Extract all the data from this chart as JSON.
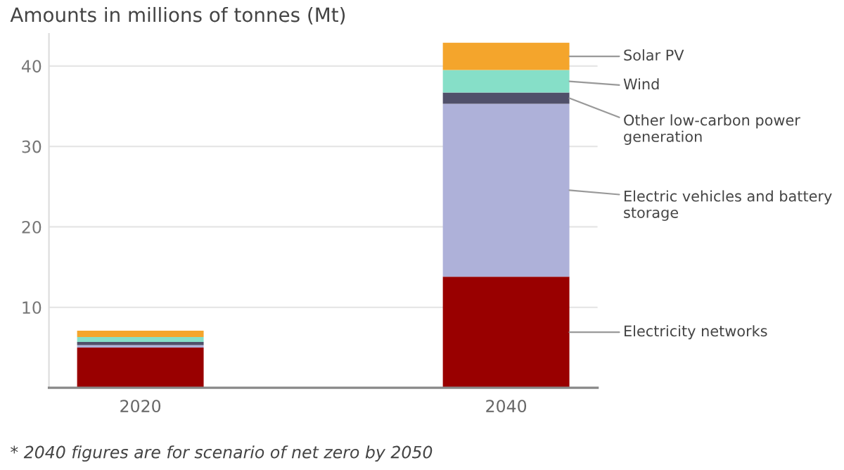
{
  "chart_data": {
    "type": "bar",
    "stacked": true,
    "title": "Amounts in millions of tonnes (Mt)",
    "categories": [
      "2020",
      "2040"
    ],
    "series": [
      {
        "name": "Electricity networks",
        "color": "#990000",
        "values": [
          5.0,
          13.8
        ]
      },
      {
        "name": "Electric vehicles and battery storage",
        "color": "#aeb1d9",
        "values": [
          0.3,
          21.5
        ]
      },
      {
        "name": "Other low-carbon power generation",
        "color": "#50506a",
        "values": [
          0.4,
          1.4
        ]
      },
      {
        "name": "Wind",
        "color": "#86dfc8",
        "values": [
          0.6,
          2.8
        ]
      },
      {
        "name": "Solar PV",
        "color": "#f4a52c",
        "values": [
          0.8,
          3.4
        ]
      }
    ],
    "ylim": [
      0,
      44
    ],
    "yticks": [
      {
        "value": 0,
        "label": null
      },
      10,
      20,
      30,
      40
    ],
    "grid": "y",
    "legend": "right",
    "annotations": [
      "* 2040 figures are for scenario of net zero by 2050"
    ]
  }
}
